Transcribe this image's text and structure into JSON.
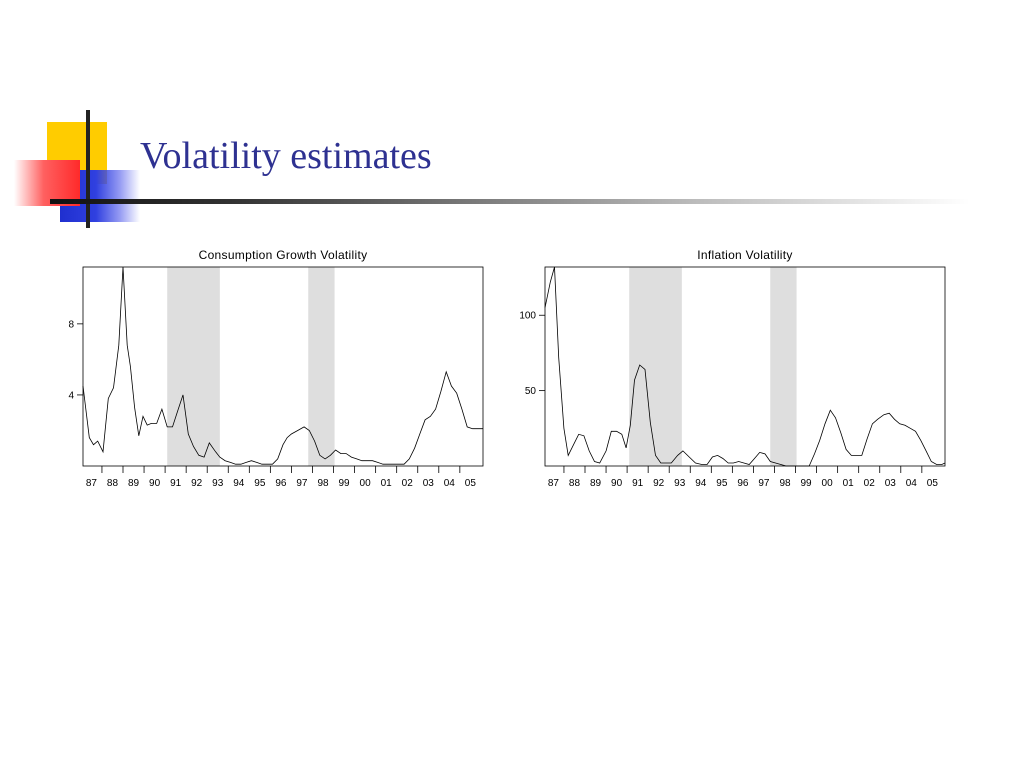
{
  "slide": {
    "title": "Volatility estimates"
  },
  "colors": {
    "title": "#2e3191",
    "shade": "#dedede",
    "line": "#000000"
  },
  "chart_data": [
    {
      "type": "line",
      "title": "Consumption Growth Volatility",
      "xlabel": "",
      "ylabel": "",
      "xlim": [
        1986.6,
        2005.6
      ],
      "ylim": [
        0,
        11.2
      ],
      "yticks": [
        4,
        8
      ],
      "xtick_labels": [
        "87",
        "88",
        "89",
        "90",
        "91",
        "92",
        "93",
        "94",
        "95",
        "96",
        "97",
        "98",
        "99",
        "00",
        "01",
        "02",
        "03",
        "04",
        "05"
      ],
      "xtick_positions": [
        1987,
        1988,
        1989,
        1990,
        1991,
        1992,
        1993,
        1994,
        1995,
        1996,
        1997,
        1998,
        1999,
        2000,
        2001,
        2002,
        2003,
        2004,
        2005
      ],
      "grid": false,
      "legend": "none",
      "shaded_periods": [
        [
          1990.6,
          1993.1
        ],
        [
          1997.3,
          1998.55
        ]
      ],
      "series": [
        {
          "x": [
            1986.6,
            1986.9,
            1987.1,
            1987.3,
            1987.55,
            1987.8,
            1988.05,
            1988.3,
            1988.5,
            1988.7,
            1988.85,
            1989.05,
            1989.25,
            1989.45,
            1989.65,
            1989.85,
            1990.1,
            1990.35,
            1990.6,
            1990.85,
            1991.1,
            1991.35,
            1991.6,
            1991.85,
            1992.1,
            1992.35,
            1992.6,
            1992.9,
            1993.1,
            1993.35,
            1993.6,
            1993.85,
            1994.1,
            1994.35,
            1994.6,
            1994.85,
            1995.1,
            1995.35,
            1995.6,
            1995.85,
            1996.1,
            1996.3,
            1996.5,
            1996.8,
            1997.1,
            1997.35,
            1997.6,
            1997.85,
            1998.1,
            1998.35,
            1998.6,
            1998.85,
            1999.1,
            1999.35,
            1999.6,
            1999.85,
            2000.1,
            2000.35,
            2000.6,
            2000.85,
            2001.1,
            2001.35,
            2001.6,
            2001.85,
            2002.1,
            2002.35,
            2002.6,
            2002.85,
            2003.1,
            2003.35,
            2003.6,
            2003.85,
            2004.1,
            2004.35,
            2004.6,
            2004.85,
            2005.1,
            2005.35,
            2005.6
          ],
          "y": [
            4.5,
            1.6,
            1.2,
            1.4,
            0.8,
            3.8,
            4.4,
            6.8,
            11.2,
            6.8,
            5.6,
            3.3,
            1.7,
            2.8,
            2.3,
            2.4,
            2.4,
            3.2,
            2.2,
            2.2,
            3.1,
            4.0,
            1.8,
            1.1,
            0.6,
            0.5,
            1.3,
            0.8,
            0.5,
            0.3,
            0.2,
            0.1,
            0.1,
            0.2,
            0.3,
            0.2,
            0.1,
            0.1,
            0.1,
            0.4,
            1.2,
            1.6,
            1.8,
            2.0,
            2.2,
            2.0,
            1.4,
            0.6,
            0.4,
            0.6,
            0.9,
            0.7,
            0.7,
            0.5,
            0.4,
            0.3,
            0.3,
            0.3,
            0.2,
            0.1,
            0.1,
            0.1,
            0.1,
            0.1,
            0.4,
            1.0,
            1.8,
            2.6,
            2.8,
            3.2,
            4.2,
            5.3,
            4.5,
            4.1,
            3.2,
            2.2,
            2.1,
            2.1,
            2.1
          ]
        }
      ]
    },
    {
      "type": "line",
      "title": "Inflation Volatility",
      "xlabel": "",
      "ylabel": "",
      "xlim": [
        1986.6,
        2005.6
      ],
      "ylim": [
        0,
        132
      ],
      "yticks": [
        50,
        100
      ],
      "xtick_labels": [
        "87",
        "88",
        "89",
        "90",
        "91",
        "92",
        "93",
        "94",
        "95",
        "96",
        "97",
        "98",
        "99",
        "00",
        "01",
        "02",
        "03",
        "04",
        "05"
      ],
      "xtick_positions": [
        1987,
        1988,
        1989,
        1990,
        1991,
        1992,
        1993,
        1994,
        1995,
        1996,
        1997,
        1998,
        1999,
        2000,
        2001,
        2002,
        2003,
        2004,
        2005
      ],
      "grid": false,
      "legend": "none",
      "shaded_periods": [
        [
          1990.6,
          1993.1
        ],
        [
          1997.3,
          1998.55
        ]
      ],
      "series": [
        {
          "x": [
            1986.6,
            1986.85,
            1987.05,
            1987.25,
            1987.5,
            1987.7,
            1987.95,
            1988.2,
            1988.45,
            1988.7,
            1988.95,
            1989.2,
            1989.5,
            1989.75,
            1990.0,
            1990.25,
            1990.45,
            1990.65,
            1990.85,
            1991.1,
            1991.35,
            1991.6,
            1991.85,
            1992.1,
            1992.35,
            1992.6,
            1992.9,
            1993.15,
            1993.45,
            1993.75,
            1994.05,
            1994.3,
            1994.55,
            1994.8,
            1995.05,
            1995.3,
            1995.55,
            1995.8,
            1996.05,
            1996.3,
            1996.55,
            1996.8,
            1997.05,
            1997.3,
            1997.55,
            1997.8,
            1998.05,
            1998.3,
            1998.55,
            1998.8,
            1999.0,
            1999.15,
            1999.4,
            1999.65,
            1999.9,
            2000.15,
            2000.4,
            2000.65,
            2000.9,
            2001.15,
            2001.4,
            2001.65,
            2001.9,
            2002.15,
            2002.4,
            2002.7,
            2002.95,
            2003.2,
            2003.45,
            2003.7,
            2003.95,
            2004.2,
            2004.45,
            2004.7,
            2004.95,
            2005.2,
            2005.45,
            2005.6
          ],
          "y": [
            105,
            122,
            132,
            72,
            25,
            7,
            14,
            21,
            20,
            10,
            3,
            2,
            10,
            23,
            23,
            21,
            12,
            27,
            57,
            67,
            64,
            29,
            7,
            2,
            2,
            2,
            7,
            10,
            6,
            2,
            1,
            1,
            6,
            7,
            5,
            2,
            2,
            3,
            2,
            1,
            5,
            9,
            8,
            3,
            2,
            1,
            0,
            0,
            0,
            0,
            0,
            0,
            8,
            17,
            28,
            37,
            32,
            22,
            11,
            7,
            7,
            7,
            18,
            28,
            31,
            34,
            35,
            31,
            28,
            27,
            25,
            23,
            17,
            10,
            3,
            1,
            1,
            2
          ]
        }
      ]
    }
  ]
}
